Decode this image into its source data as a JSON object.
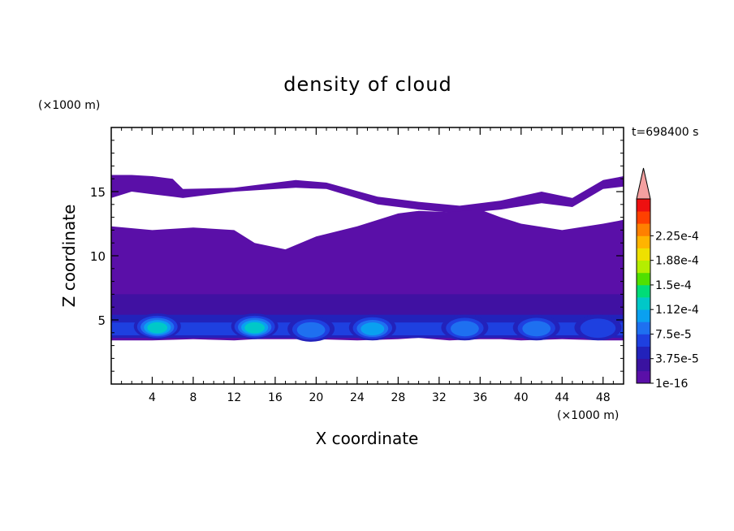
{
  "chart_data": {
    "type": "heatmap",
    "title": "density of cloud",
    "time_label": "t=698400 s",
    "xlabel": "X coordinate",
    "ylabel": "Z coordinate",
    "x_unit": "(×1000 m)",
    "y_unit": "(×1000 m)",
    "xlim": [
      0,
      50
    ],
    "ylim": [
      0,
      20
    ],
    "x_ticks": [
      "4",
      "8",
      "12",
      "16",
      "20",
      "24",
      "28",
      "32",
      "36",
      "40",
      "44",
      "48"
    ],
    "x_tick_values": [
      4,
      8,
      12,
      16,
      20,
      24,
      28,
      32,
      36,
      40,
      44,
      48
    ],
    "y_ticks": [
      "5",
      "10",
      "15"
    ],
    "y_tick_values": [
      5,
      10,
      15
    ],
    "colorbar": {
      "labels": [
        "2.25e-4",
        "1.88e-4",
        "1.5e-4",
        "1.12e-4",
        "7.5e-5",
        "3.75e-5",
        "1e-16"
      ],
      "label_levels": [
        10,
        8,
        6,
        4,
        2,
        0,
        -2
      ],
      "colors": [
        "#5a0fa8",
        "#3a12a0",
        "#2222bb",
        "#1e40e0",
        "#1e70f0",
        "#0aa0f0",
        "#00c8c8",
        "#00dc78",
        "#50e000",
        "#b4ee00",
        "#eee000",
        "#ffb400",
        "#ff8000",
        "#ff4000",
        "#ee1010"
      ],
      "over_color": "#f4a0a0"
    },
    "cloud_layers": [
      {
        "name": "upper",
        "x": [
          0,
          2,
          4,
          6,
          7,
          12,
          18,
          21,
          26,
          30,
          34,
          38,
          42,
          45,
          48,
          50
        ],
        "z_top": [
          16.3,
          16.3,
          16.2,
          16.0,
          15.2,
          15.3,
          15.9,
          15.7,
          14.6,
          14.2,
          13.9,
          14.3,
          15.0,
          14.5,
          15.9,
          16.2
        ],
        "z_bottom": [
          14.5,
          15.0,
          14.8,
          14.6,
          14.5,
          15.0,
          15.3,
          15.2,
          14.0,
          13.6,
          13.3,
          13.6,
          14.1,
          13.8,
          15.2,
          15.4
        ]
      },
      {
        "name": "main",
        "x": [
          0,
          4,
          8,
          12,
          14,
          17,
          20,
          24,
          28,
          30,
          33,
          36,
          38,
          40,
          44,
          48,
          50
        ],
        "z_top": [
          12.3,
          12.0,
          12.2,
          12.0,
          11.0,
          10.5,
          11.5,
          12.3,
          13.3,
          13.5,
          13.4,
          13.6,
          13.0,
          12.5,
          12.0,
          12.5,
          12.8
        ],
        "z_bottom": [
          3.4,
          3.4,
          3.5,
          3.4,
          3.5,
          3.5,
          3.5,
          3.4,
          3.5,
          3.6,
          3.4,
          3.5,
          3.5,
          3.4,
          3.5,
          3.4,
          3.4
        ]
      }
    ],
    "convective_cells": [
      {
        "x": 4.5,
        "z": 4.5,
        "peak_level": 6
      },
      {
        "x": 14.0,
        "z": 4.5,
        "peak_level": 6
      },
      {
        "x": 19.5,
        "z": 4.3,
        "peak_level": 4
      },
      {
        "x": 25.5,
        "z": 4.4,
        "peak_level": 5
      },
      {
        "x": 34.5,
        "z": 4.4,
        "peak_level": 4
      },
      {
        "x": 41.5,
        "z": 4.4,
        "peak_level": 4
      },
      {
        "x": 47.5,
        "z": 4.4,
        "peak_level": 3
      }
    ]
  }
}
